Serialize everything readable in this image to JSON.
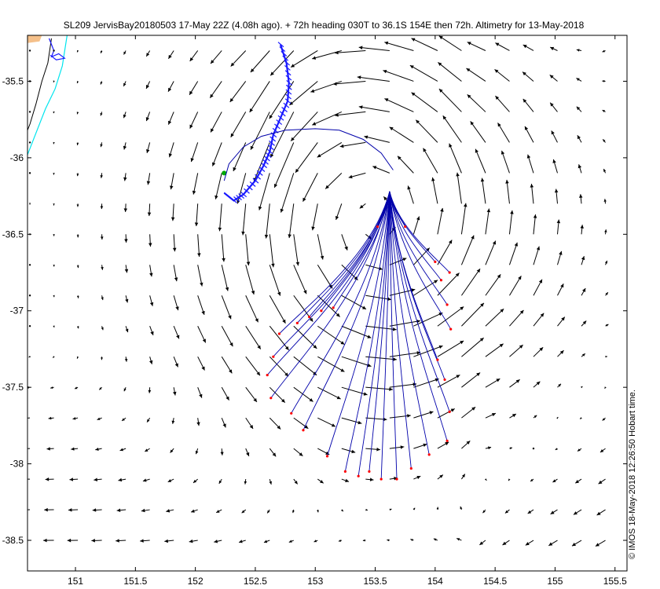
{
  "chart_data": {
    "type": "quiver",
    "title": "SL209 JervisBay20180503 17-May 22Z (4.08h ago). + 72h heading 030T to 36.1S 154E then 72h. Altimetry for 13-May-2018",
    "credit": "© IMOS 18-May-2018 12:26:50 Hobart time.",
    "xlabel": "",
    "ylabel": "",
    "xlim": [
      150.6,
      155.6
    ],
    "ylim": [
      -38.7,
      -35.2
    ],
    "x_ticks": [
      {
        "value": 151,
        "label": "151"
      },
      {
        "value": 151.5,
        "label": "151.5"
      },
      {
        "value": 152,
        "label": "152"
      },
      {
        "value": 152.5,
        "label": "152.5"
      },
      {
        "value": 153,
        "label": "153"
      },
      {
        "value": 153.5,
        "label": "153.5"
      },
      {
        "value": 154,
        "label": "154"
      },
      {
        "value": 154.5,
        "label": "154.5"
      },
      {
        "value": 155,
        "label": "155"
      },
      {
        "value": 155.5,
        "label": "155.5"
      }
    ],
    "y_ticks": [
      {
        "value": -35.5,
        "label": "-35.5"
      },
      {
        "value": -36,
        "label": "-36"
      },
      {
        "value": -36.5,
        "label": "-36.5"
      },
      {
        "value": -37,
        "label": "-37"
      },
      {
        "value": -37.5,
        "label": "-37.5"
      },
      {
        "value": -38,
        "label": "-38"
      },
      {
        "value": -38.5,
        "label": "-38.5"
      }
    ],
    "colors": {
      "current_arrows": "#000000",
      "glider_track": "#1a1aff",
      "forecast_tracks": "#0000aa",
      "forecast_end": "#ff0000",
      "glider_position": "#00aa00",
      "coast_fill": "#f5c08a",
      "coastline": "#000000",
      "isobath": "#00e5ee",
      "inshore_track": "#1a1aff"
    },
    "land": [
      [
        150.6,
        -35.2
      ],
      [
        150.72,
        -35.2
      ],
      [
        150.7,
        -35.24
      ],
      [
        150.6,
        -35.25
      ]
    ],
    "coastline": [
      [
        150.8,
        -35.22
      ],
      [
        150.77,
        -35.38
      ],
      [
        150.72,
        -35.5
      ],
      [
        150.67,
        -35.65
      ],
      [
        150.62,
        -35.78
      ],
      [
        150.6,
        -35.82
      ]
    ],
    "isobath": [
      [
        150.93,
        -35.2
      ],
      [
        150.89,
        -35.4
      ],
      [
        150.83,
        -35.55
      ],
      [
        150.75,
        -35.68
      ],
      [
        150.68,
        -35.82
      ],
      [
        150.6,
        -35.98
      ]
    ],
    "inshore_track": [
      [
        150.78,
        -35.22
      ],
      [
        150.82,
        -35.3
      ],
      [
        150.8,
        -35.34
      ],
      [
        150.86,
        -35.32
      ],
      [
        150.91,
        -35.35
      ],
      [
        150.84,
        -35.36
      ],
      [
        150.79,
        -35.33
      ]
    ],
    "glider_track": [
      [
        152.71,
        -35.26
      ],
      [
        152.76,
        -35.38
      ],
      [
        152.78,
        -35.51
      ],
      [
        152.77,
        -35.63
      ],
      [
        152.71,
        -35.74
      ],
      [
        152.65,
        -35.85
      ],
      [
        152.62,
        -35.96
      ],
      [
        152.57,
        -36.05
      ],
      [
        152.5,
        -36.15
      ],
      [
        152.4,
        -36.24
      ],
      [
        152.32,
        -36.28
      ],
      [
        152.24,
        -36.23
      ]
    ],
    "glider_position": {
      "lon": 152.24,
      "lat": -36.1
    },
    "forecast_loop": [
      [
        152.24,
        -36.15
      ],
      [
        152.28,
        -36.04
      ],
      [
        152.4,
        -35.93
      ],
      [
        152.55,
        -35.86
      ],
      [
        152.75,
        -35.82
      ],
      [
        153.0,
        -35.81
      ],
      [
        153.2,
        -35.82
      ],
      [
        153.4,
        -35.88
      ],
      [
        153.55,
        -35.97
      ],
      [
        153.65,
        -36.08
      ]
    ],
    "forecast_origin": {
      "lon": 153.62,
      "lat": -36.22
    },
    "forecast_ends": [
      [
        152.85,
        -37.08
      ],
      [
        152.95,
        -37.04
      ],
      [
        153.05,
        -37.0
      ],
      [
        153.15,
        -36.98
      ],
      [
        152.7,
        -37.15
      ],
      [
        152.65,
        -37.3
      ],
      [
        152.6,
        -37.42
      ],
      [
        152.63,
        -37.57
      ],
      [
        152.8,
        -37.67
      ],
      [
        152.9,
        -37.78
      ],
      [
        153.1,
        -37.95
      ],
      [
        153.25,
        -38.05
      ],
      [
        153.36,
        -38.08
      ],
      [
        153.45,
        -38.05
      ],
      [
        153.55,
        -38.1
      ],
      [
        153.68,
        -38.1
      ],
      [
        153.8,
        -38.03
      ],
      [
        153.95,
        -37.94
      ],
      [
        154.1,
        -37.85
      ],
      [
        154.12,
        -37.66
      ],
      [
        154.08,
        -37.45
      ],
      [
        154.02,
        -37.32
      ],
      [
        154.13,
        -37.12
      ],
      [
        154.1,
        -36.96
      ],
      [
        154.05,
        -36.8
      ],
      [
        154.0,
        -36.68
      ],
      [
        154.12,
        -36.75
      ],
      [
        153.75,
        -36.45
      ],
      [
        153.52,
        -36.45
      ]
    ],
    "currents": {
      "lon0": 150.62,
      "lat0": -35.3,
      "dlon": 0.2,
      "dlat": -0.2,
      "nx": 25,
      "ny": 17,
      "note_units": "degrees per arrow, direction = flow"
    }
  }
}
